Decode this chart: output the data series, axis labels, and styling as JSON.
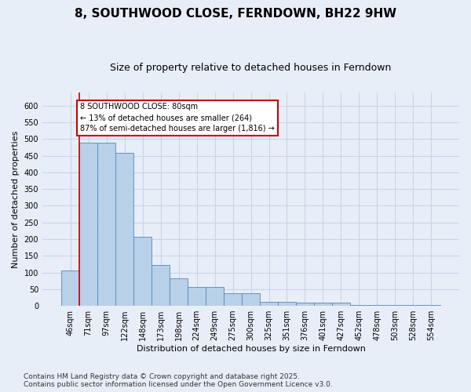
{
  "title": "8, SOUTHWOOD CLOSE, FERNDOWN, BH22 9HW",
  "subtitle": "Size of property relative to detached houses in Ferndown",
  "xlabel": "Distribution of detached houses by size in Ferndown",
  "ylabel": "Number of detached properties",
  "categories": [
    "46sqm",
    "71sqm",
    "97sqm",
    "122sqm",
    "148sqm",
    "173sqm",
    "198sqm",
    "224sqm",
    "249sqm",
    "275sqm",
    "300sqm",
    "325sqm",
    "351sqm",
    "376sqm",
    "401sqm",
    "427sqm",
    "452sqm",
    "478sqm",
    "503sqm",
    "528sqm",
    "554sqm"
  ],
  "values": [
    105,
    490,
    490,
    458,
    207,
    122,
    82,
    57,
    57,
    38,
    38,
    13,
    13,
    10,
    10,
    10,
    3,
    3,
    3,
    3,
    3
  ],
  "bar_color": "#b8d0e8",
  "bar_edge_color": "#5588bb",
  "vline_x_index": 1,
  "vline_color": "#cc0000",
  "annotation_text": "8 SOUTHWOOD CLOSE: 80sqm\n← 13% of detached houses are smaller (264)\n87% of semi-detached houses are larger (1,816) →",
  "annotation_box_color": "#cc0000",
  "annotation_box_facecolor": "white",
  "footnote": "Contains HM Land Registry data © Crown copyright and database right 2025.\nContains public sector information licensed under the Open Government Licence v3.0.",
  "ylim": [
    0,
    640
  ],
  "yticks": [
    0,
    50,
    100,
    150,
    200,
    250,
    300,
    350,
    400,
    450,
    500,
    550,
    600
  ],
  "background_color": "#e8eef8",
  "plot_bg_color": "#e8eef8",
  "grid_color": "#c8d4e8",
  "title_fontsize": 11,
  "subtitle_fontsize": 9,
  "label_fontsize": 8,
  "tick_fontsize": 7,
  "footnote_fontsize": 6.5
}
